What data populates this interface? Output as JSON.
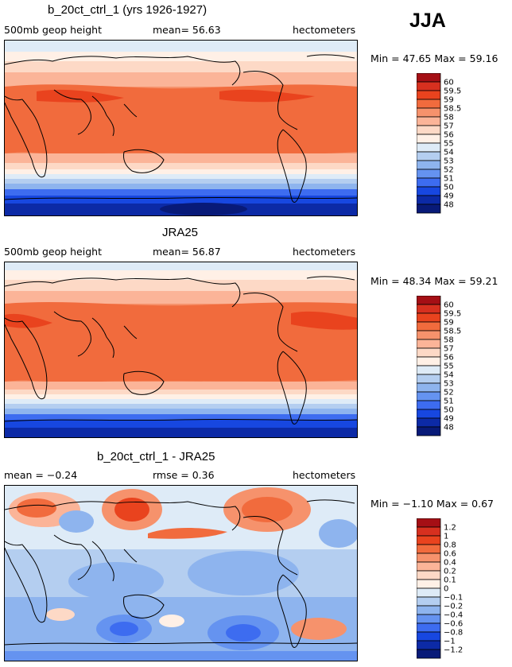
{
  "season": "JJA",
  "panels": [
    {
      "title": "b_20ct_ctrl_1 (yrs 1926-1927)",
      "left_label": "500mb geop height",
      "center_label": "mean=  56.63",
      "units": "hectometers",
      "minmax": "Min =  47.65  Max =  59.16",
      "colorbar_labels": [
        "60",
        "59.5",
        "59",
        "58.5",
        "58",
        "57",
        "56",
        "55",
        "54",
        "53",
        "52",
        "51",
        "50",
        "49",
        "48"
      ],
      "colors": [
        "#a50f15",
        "#d7301f",
        "#e9431e",
        "#f16b3d",
        "#f6926c",
        "#fbb498",
        "#fdd9c6",
        "#fff0e6",
        "#deebf7",
        "#b4cef0",
        "#8eb4ee",
        "#6593f0",
        "#3d6cf0",
        "#1747e0",
        "#0c2aa6",
        "#081a78"
      ]
    },
    {
      "title": "JRA25",
      "left_label": "500mb geop height",
      "center_label": "mean=  56.87",
      "units": "hectometers",
      "minmax": "Min =  48.34  Max =  59.21",
      "colorbar_labels": [
        "60",
        "59.5",
        "59",
        "58.5",
        "58",
        "57",
        "56",
        "55",
        "54",
        "53",
        "52",
        "51",
        "50",
        "49",
        "48"
      ],
      "colors": [
        "#a50f15",
        "#d7301f",
        "#e9431e",
        "#f16b3d",
        "#f6926c",
        "#fbb498",
        "#fdd9c6",
        "#fff0e6",
        "#deebf7",
        "#b4cef0",
        "#8eb4ee",
        "#6593f0",
        "#3d6cf0",
        "#1747e0",
        "#0c2aa6",
        "#081a78"
      ]
    },
    {
      "title": "b_20ct_ctrl_1 - JRA25",
      "left_label": "mean =  −0.24",
      "center_label": "rmse =   0.36",
      "units": "hectometers",
      "minmax": "Min =  −1.10  Max =   0.67",
      "colorbar_labels": [
        "1.2",
        "1",
        "0.8",
        "0.6",
        "0.4",
        "0.2",
        "0.1",
        "0",
        "−0.1",
        "−0.2",
        "−0.4",
        "−0.6",
        "−0.8",
        "−1",
        "−1.2"
      ],
      "colors": [
        "#a50f15",
        "#d7301f",
        "#e9431e",
        "#f16b3d",
        "#f6926c",
        "#fbb498",
        "#fdd9c6",
        "#fff0e6",
        "#deebf7",
        "#b4cef0",
        "#8eb4ee",
        "#6593f0",
        "#3d6cf0",
        "#1747e0",
        "#0c2aa6",
        "#081a78"
      ]
    }
  ]
}
